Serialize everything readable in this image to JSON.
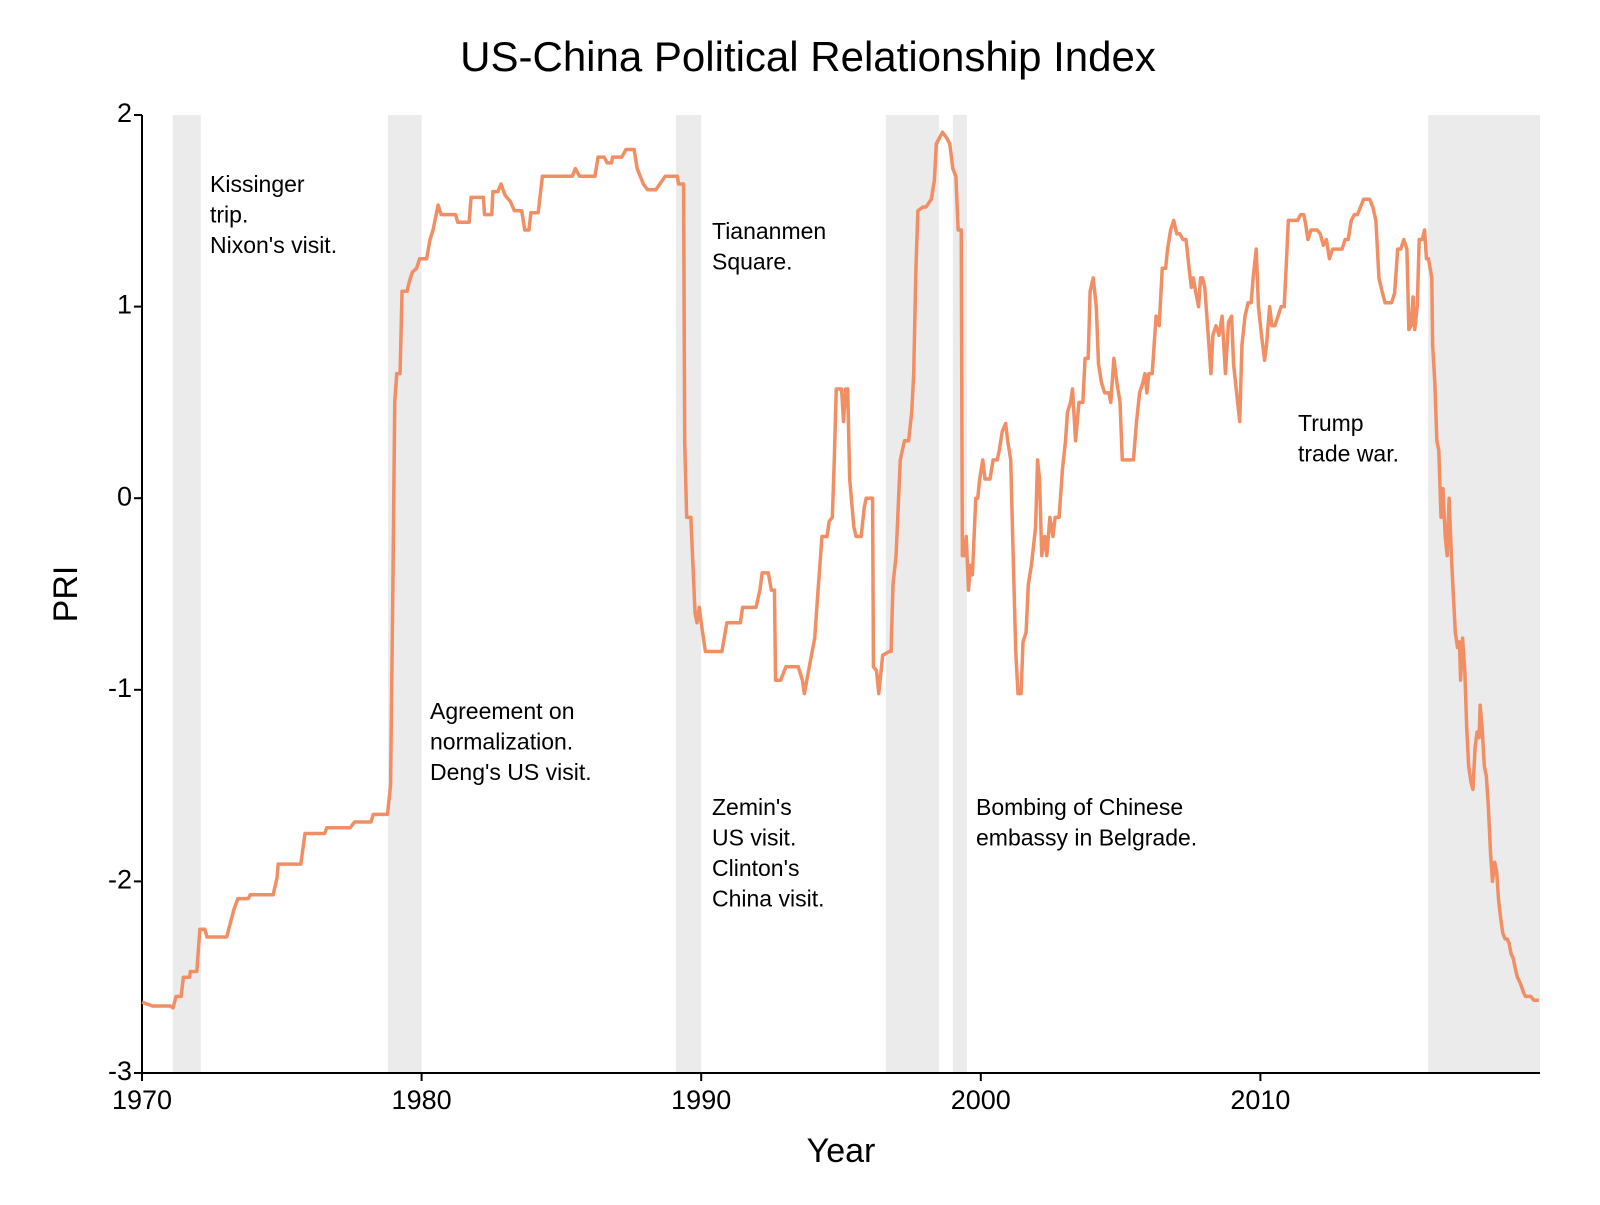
{
  "chart_data": {
    "type": "line",
    "title": "US-China Political Relationship Index",
    "x_label": "Year",
    "y_label": "PRI",
    "xlim": [
      1970,
      2020
    ],
    "ylim": [
      -3,
      2
    ],
    "xticks": [
      1970,
      1980,
      1990,
      2000,
      2010
    ],
    "yticks": [
      -3,
      -2,
      -1,
      0,
      1,
      2
    ],
    "color": "#f28e64",
    "shade_color": "#ebebeb",
    "shaded_periods": [
      [
        1971.1,
        1972.1
      ],
      [
        1978.8,
        1980.0
      ],
      [
        1989.1,
        1990.0
      ],
      [
        1996.6,
        1998.5
      ],
      [
        1999.0,
        1999.5
      ],
      [
        2016.0,
        2020.0
      ]
    ],
    "annotations": [
      [
        "Kissinger",
        "trip.",
        "Nixon's visit."
      ],
      [
        "Agreement on",
        "normalization.",
        "Deng's US visit."
      ],
      [
        "Tiananmen",
        "Square."
      ],
      [
        "Zemin's",
        "US visit.",
        "Clinton's",
        "China visit."
      ],
      [
        "Bombing of Chinese",
        "embassy in Belgrade."
      ],
      [
        "Trump",
        "trade war."
      ]
    ],
    "x": [
      1970.0,
      1970.37,
      1971.0,
      1971.11,
      1971.22,
      1971.4,
      1971.48,
      1971.7,
      1971.73,
      1971.96,
      1972.07,
      1972.25,
      1972.32,
      1973.03,
      1973.28,
      1973.43,
      1973.8,
      1973.87,
      1974.69,
      1974.83,
      1974.87,
      1975.68,
      1975.83,
      1976.53,
      1976.61,
      1977.45,
      1977.6,
      1978.19,
      1978.27,
      1978.78,
      1978.89,
      1978.97,
      1979.04,
      1979.11,
      1979.23,
      1979.3,
      1979.48,
      1979.56,
      1979.67,
      1979.82,
      1979.93,
      1980.18,
      1980.3,
      1980.41,
      1980.59,
      1980.7,
      1981.22,
      1981.29,
      1981.7,
      1981.77,
      1982.21,
      1982.25,
      1982.51,
      1982.55,
      1982.73,
      1982.84,
      1982.99,
      1983.17,
      1983.32,
      1983.58,
      1983.69,
      1983.84,
      1983.91,
      1984.17,
      1984.32,
      1985.39,
      1985.5,
      1985.65,
      1986.2,
      1986.31,
      1986.53,
      1986.64,
      1986.79,
      1986.83,
      1987.16,
      1987.31,
      1987.6,
      1987.71,
      1987.93,
      1988.08,
      1988.38,
      1988.52,
      1988.71,
      1989.15,
      1989.19,
      1989.37,
      1989.41,
      1989.48,
      1989.63,
      1989.78,
      1989.85,
      1989.93,
      1990.0,
      1990.15,
      1990.74,
      1990.92,
      1991.4,
      1991.48,
      1991.96,
      1992.1,
      1992.18,
      1992.4,
      1992.51,
      1992.62,
      1992.66,
      1992.84,
      1993.03,
      1993.47,
      1993.62,
      1993.69,
      1993.84,
      1994.06,
      1994.17,
      1994.32,
      1994.5,
      1994.58,
      1994.69,
      1994.76,
      1994.83,
      1995.02,
      1995.09,
      1995.17,
      1995.24,
      1995.31,
      1995.46,
      1995.54,
      1995.72,
      1995.83,
      1995.9,
      1996.13,
      1996.16,
      1996.27,
      1996.35,
      1996.49,
      1996.72,
      1996.79,
      1996.86,
      1996.97,
      1997.12,
      1997.27,
      1997.42,
      1997.53,
      1997.6,
      1997.68,
      1997.75,
      1997.93,
      1998.04,
      1998.23,
      1998.34,
      1998.41,
      1998.52,
      1998.63,
      1998.78,
      1998.89,
      1999.0,
      1999.11,
      1999.19,
      1999.3,
      1999.34,
      1999.41,
      1999.48,
      1999.56,
      1999.63,
      1999.7,
      1999.82,
      1999.89,
      1999.96,
      2000.07,
      2000.15,
      2000.33,
      2000.44,
      2000.59,
      2000.66,
      2000.77,
      2000.89,
      2000.96,
      2001.07,
      2001.14,
      2001.25,
      2001.33,
      2001.44,
      2001.51,
      2001.62,
      2001.7,
      2001.81,
      2001.96,
      2002.03,
      2002.1,
      2002.18,
      2002.29,
      2002.36,
      2002.47,
      2002.58,
      2002.66,
      2002.8,
      2002.92,
      2003.03,
      2003.1,
      2003.21,
      2003.28,
      2003.39,
      2003.51,
      2003.65,
      2003.73,
      2003.84,
      2003.91,
      2004.02,
      2004.13,
      2004.21,
      2004.32,
      2004.43,
      2004.58,
      2004.65,
      2004.76,
      2004.87,
      2004.98,
      2005.06,
      2005.13,
      2005.46,
      2005.57,
      2005.68,
      2005.79,
      2005.87,
      2005.94,
      2006.01,
      2006.13,
      2006.27,
      2006.38,
      2006.49,
      2006.61,
      2006.68,
      2006.79,
      2006.9,
      2007.01,
      2007.12,
      2007.23,
      2007.34,
      2007.45,
      2007.53,
      2007.6,
      2007.68,
      2007.79,
      2007.86,
      2007.93,
      2008.01,
      2008.12,
      2008.23,
      2008.3,
      2008.41,
      2008.52,
      2008.63,
      2008.75,
      2008.86,
      2008.97,
      2009.04,
      2009.15,
      2009.26,
      2009.34,
      2009.45,
      2009.56,
      2009.67,
      2009.74,
      2009.85,
      2009.93,
      2010.04,
      2010.15,
      2010.22,
      2010.33,
      2010.41,
      2010.52,
      2010.63,
      2010.74,
      2010.85,
      2010.92,
      2011.0,
      2011.33,
      2011.44,
      2011.55,
      2011.62,
      2011.7,
      2011.81,
      2012.03,
      2012.14,
      2012.25,
      2012.36,
      2012.47,
      2012.58,
      2012.92,
      2013.03,
      2013.14,
      2013.25,
      2013.36,
      2013.47,
      2013.58,
      2013.69,
      2013.91,
      2014.02,
      2014.13,
      2014.24,
      2014.35,
      2014.46,
      2014.69,
      2014.8,
      2014.91,
      2015.02,
      2015.13,
      2015.24,
      2015.31,
      2015.39,
      2015.46,
      2015.52,
      2015.61,
      2015.68,
      2015.79,
      2015.87,
      2015.94,
      2016.01,
      2016.13,
      2016.16,
      2016.24,
      2016.31,
      2016.38,
      2016.46,
      2016.53,
      2016.61,
      2016.68,
      2016.75,
      2016.83,
      2016.9,
      2016.97,
      2017.05,
      2017.12,
      2017.16,
      2017.23,
      2017.31,
      2017.38,
      2017.45,
      2017.53,
      2017.6,
      2017.68,
      2017.75,
      2017.82,
      2017.86,
      2017.93,
      2018.01,
      2018.08,
      2018.15,
      2018.23,
      2018.3,
      2018.38,
      2018.45,
      2018.52,
      2018.6,
      2018.67,
      2018.75,
      2018.82,
      2018.89,
      2018.97,
      2019.04,
      2019.11,
      2019.19,
      2019.26,
      2019.34,
      2019.41,
      2019.48,
      2019.67,
      2019.78,
      2019.96
    ],
    "values": [
      -2.63,
      -2.65,
      -2.65,
      -2.66,
      -2.6,
      -2.6,
      -2.5,
      -2.5,
      -2.47,
      -2.47,
      -2.25,
      -2.25,
      -2.29,
      -2.29,
      -2.15,
      -2.09,
      -2.09,
      -2.07,
      -2.07,
      -1.98,
      -1.91,
      -1.91,
      -1.75,
      -1.75,
      -1.72,
      -1.72,
      -1.69,
      -1.69,
      -1.65,
      -1.65,
      -1.5,
      -0.5,
      0.5,
      0.65,
      0.65,
      1.08,
      1.08,
      1.13,
      1.18,
      1.2,
      1.25,
      1.25,
      1.35,
      1.4,
      1.53,
      1.48,
      1.48,
      1.44,
      1.44,
      1.57,
      1.57,
      1.48,
      1.48,
      1.6,
      1.6,
      1.64,
      1.58,
      1.55,
      1.5,
      1.5,
      1.4,
      1.4,
      1.49,
      1.49,
      1.68,
      1.68,
      1.72,
      1.68,
      1.68,
      1.78,
      1.78,
      1.75,
      1.75,
      1.78,
      1.78,
      1.82,
      1.82,
      1.72,
      1.64,
      1.61,
      1.61,
      1.64,
      1.68,
      1.68,
      1.64,
      1.64,
      0.3,
      -0.1,
      -0.1,
      -0.6,
      -0.65,
      -0.57,
      -0.65,
      -0.8,
      -0.8,
      -0.65,
      -0.65,
      -0.57,
      -0.57,
      -0.48,
      -0.39,
      -0.39,
      -0.48,
      -0.48,
      -0.95,
      -0.95,
      -0.88,
      -0.88,
      -0.95,
      -1.02,
      -0.9,
      -0.73,
      -0.5,
      -0.2,
      -0.2,
      -0.12,
      -0.1,
      0.2,
      0.57,
      0.57,
      0.4,
      0.57,
      0.57,
      0.1,
      -0.15,
      -0.2,
      -0.2,
      -0.05,
      0,
      0,
      -0.88,
      -0.9,
      -1.02,
      -0.82,
      -0.8,
      -0.8,
      -0.45,
      -0.3,
      0.2,
      0.3,
      0.3,
      0.45,
      0.65,
      1.2,
      1.5,
      1.52,
      1.52,
      1.56,
      1.66,
      1.85,
      1.88,
      1.91,
      1.88,
      1.85,
      1.72,
      1.68,
      1.4,
      1.4,
      -0.3,
      -0.3,
      -0.2,
      -0.48,
      -0.35,
      -0.4,
      0,
      0,
      0.1,
      0.2,
      0.1,
      0.1,
      0.2,
      0.2,
      0.25,
      0.35,
      0.39,
      0.3,
      0.2,
      -0.2,
      -0.8,
      -1.02,
      -1.02,
      -0.75,
      -0.7,
      -0.45,
      -0.35,
      -0.15,
      0.2,
      0.1,
      -0.3,
      -0.2,
      -0.3,
      -0.1,
      -0.2,
      -0.1,
      -0.1,
      0.15,
      0.3,
      0.45,
      0.5,
      0.57,
      0.3,
      0.5,
      0.5,
      0.73,
      0.73,
      1.08,
      1.15,
      1.0,
      0.7,
      0.6,
      0.55,
      0.55,
      0.5,
      0.73,
      0.6,
      0.5,
      0.2,
      0.2,
      0.2,
      0.4,
      0.55,
      0.6,
      0.65,
      0.55,
      0.65,
      0.65,
      0.95,
      0.9,
      1.2,
      1.2,
      1.3,
      1.4,
      1.45,
      1.38,
      1.38,
      1.35,
      1.35,
      1.2,
      1.1,
      1.15,
      1.08,
      1.0,
      1.15,
      1.15,
      1.1,
      0.88,
      0.65,
      0.85,
      0.9,
      0.85,
      0.95,
      0.65,
      0.92,
      0.95,
      0.7,
      0.55,
      0.4,
      0.8,
      0.95,
      1.02,
      1.02,
      1.15,
      1.3,
      1.0,
      0.85,
      0.72,
      0.8,
      1.0,
      0.9,
      0.9,
      0.95,
      1.0,
      1.0,
      1.2,
      1.45,
      1.45,
      1.48,
      1.48,
      1.43,
      1.35,
      1.4,
      1.4,
      1.38,
      1.32,
      1.35,
      1.25,
      1.3,
      1.3,
      1.35,
      1.35,
      1.45,
      1.48,
      1.48,
      1.52,
      1.56,
      1.56,
      1.52,
      1.45,
      1.15,
      1.08,
      1.02,
      1.02,
      1.07,
      1.3,
      1.3,
      1.35,
      1.3,
      0.88,
      0.9,
      1.05,
      0.88,
      1.0,
      1.35,
      1.35,
      1.4,
      1.25,
      1.25,
      1.15,
      0.8,
      0.6,
      0.3,
      0.25,
      -0.1,
      0.05,
      -0.2,
      -0.3,
      0,
      -0.3,
      -0.5,
      -0.7,
      -0.78,
      -0.75,
      -0.95,
      -0.73,
      -0.9,
      -1.2,
      -1.4,
      -1.48,
      -1.52,
      -1.3,
      -1.22,
      -1.25,
      -1.08,
      -1.2,
      -1.4,
      -1.45,
      -1.6,
      -1.85,
      -2.0,
      -1.9,
      -1.95,
      -2.1,
      -2.2,
      -2.27,
      -2.3,
      -2.3,
      -2.32,
      -2.38,
      -2.4,
      -2.45,
      -2.5,
      -2.52,
      -2.55,
      -2.58,
      -2.6,
      -2.6,
      -2.62,
      -2.62
    ]
  }
}
